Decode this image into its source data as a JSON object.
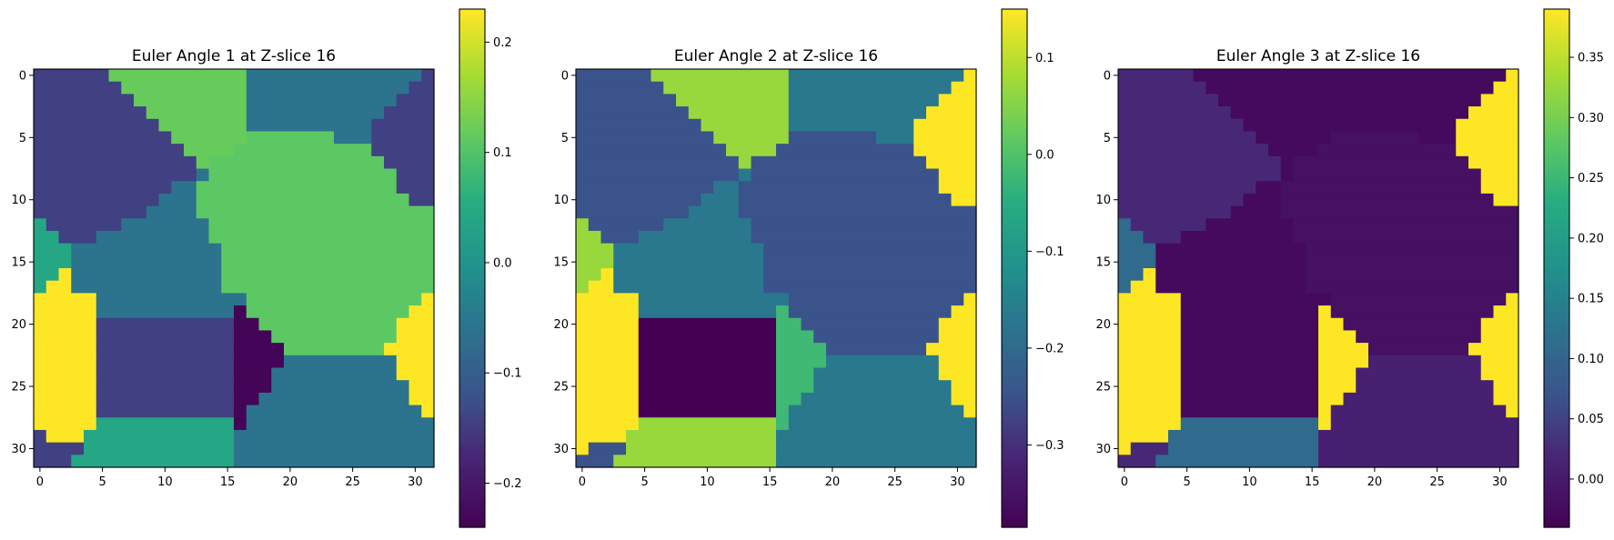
{
  "figure": "Euler angles at Z-slice 16",
  "chart_data": [
    {
      "type": "heatmap",
      "title": "Euler Angle 1 at Z-slice 16",
      "xlabel": "",
      "ylabel": "",
      "x_ticks": [
        0,
        5,
        10,
        15,
        20,
        25,
        30
      ],
      "y_ticks": [
        0,
        5,
        10,
        15,
        20,
        25,
        30
      ],
      "grid": false,
      "colormap": "viridis",
      "colorbar": {
        "range": [
          -0.24,
          0.23
        ],
        "ticks": [
          -0.2,
          -0.1,
          0.0,
          0.1,
          0.2
        ],
        "tick_labels": [
          "−0.2",
          "−0.1",
          "0.0",
          "0.1",
          "0.2"
        ]
      },
      "grains": {
        "A": 0.23,
        "B": -0.145,
        "C": 0.12,
        "D": -0.06,
        "E": 0.11,
        "F": -0.145,
        "G": -0.235,
        "H": -0.145,
        "I": -0.06,
        "J": 0.04
      }
    },
    {
      "type": "heatmap",
      "title": "Euler Angle 2 at Z-slice 16",
      "xlabel": "",
      "ylabel": "",
      "x_ticks": [
        0,
        5,
        10,
        15,
        20,
        25,
        30
      ],
      "y_ticks": [
        0,
        5,
        10,
        15,
        20,
        25,
        30
      ],
      "grid": false,
      "colormap": "viridis",
      "colorbar": {
        "range": [
          -0.385,
          0.15
        ],
        "ticks": [
          -0.3,
          -0.2,
          -0.1,
          0.0,
          0.1
        ],
        "tick_labels": [
          "−0.3",
          "−0.2",
          "−0.1",
          "0.0",
          "0.1"
        ]
      },
      "grains": {
        "A": 0.15,
        "B": -0.25,
        "C": 0.07,
        "D": -0.17,
        "E": -0.25,
        "F": 0.15,
        "G": -0.02,
        "H": -0.385,
        "I": -0.17,
        "J": 0.07
      }
    },
    {
      "type": "heatmap",
      "title": "Euler Angle 3 at Z-slice 16",
      "xlabel": "",
      "ylabel": "",
      "x_ticks": [
        0,
        5,
        10,
        15,
        20,
        25,
        30
      ],
      "y_ticks": [
        0,
        5,
        10,
        15,
        20,
        25,
        30
      ],
      "grid": false,
      "colormap": "viridis",
      "colorbar": {
        "range": [
          -0.04,
          0.39
        ],
        "ticks": [
          0.0,
          0.05,
          0.1,
          0.15,
          0.2,
          0.25,
          0.3,
          0.35
        ],
        "tick_labels": [
          "0.00",
          "0.05",
          "0.10",
          "0.15",
          "0.20",
          "0.25",
          "0.30",
          "0.35"
        ]
      },
      "grains": {
        "A": 0.39,
        "B": 0.02,
        "C": -0.025,
        "D": -0.025,
        "E": -0.015,
        "F": 0.39,
        "G": 0.39,
        "H": -0.025,
        "I": 0.01,
        "J": 0.11
      }
    }
  ],
  "grain_map_rows": [
    "BBBBBBCCCCCCCCCCCDDDDDDDDDDDDDDF",
    "BBBBBBBCCCCCCCCCCDDDDDDDDDDDDDFF",
    "BBBBBBBBCCCCCCCCCDDDDDDDDDDDDFFF",
    "BBBBBBBBBCCCCCCCCDDDDDDDDDDDFFFF",
    "BBBBBBBBBBCCCCCCCDDDDDDDDDDFFFFF",
    "BBBBBBBBBBBCCCCCCEEEEEEEDDDFFFFF",
    "BBBBBBBBBBBBCCCCEEEEEEEEEEEFFFFF",
    "BBBBBBBBBBBBBCEEEEEEEEEEEEEEFFFF",
    "BBBBBBBBBBBBBDEEEEEEEEEEEEEEEFFF",
    "BBBBBBBBBBBDDEEEEEEEEEEEEEEEEFFF",
    "BBBBBBBBBBDDDEEEEEEEEEEEEEEEEEFF",
    "BBBBBBBBBDDDDEEEEEEEEEEEEEEEEEEE",
    "JBBBBBBDDDDDDDEEEEEEEEEEEEEEEEEE",
    "JJBBBDDDDDDDDDEEEEEEEEEEEEEEEEEE",
    "JJJDDDDDDDDDDDDEEEEEEEEEEEEEEEEE",
    "JJJDDDDDDDDDDDDEEEEEEEEEEEEEEEEE",
    "JJADDDDDDDDDDDDEEEEEEEEEEEEEEEEE",
    "JAADDDDDDDDDDDDEEEEEEEEEEEEEEEEE",
    "AAAAADDDDDDDDDDDDEEEEEEEEEEEEEEA",
    "AAAAADDDDDDDDDDDGEEEEEEEEEEEEEAA",
    "AAAAAHHHHHHHHHHHGGEEEEEEEEEEEAAA",
    "AAAAAHHHHHHHHHHHGGGEEEEEEEEEEAAA",
    "AAAAAHHHHHHHHHHHGGGGEEEEEEEEAAAA",
    "AAAAAHHHHHHHHHHHGGGGIIIIIIIIIAAA",
    "AAAAAHHHHHHHHHHHGGGIIIIIIIIIIAAA",
    "AAAAAHHHHHHHHHHHGGGIIIIIIIIIIIAA",
    "AAAAAHHHHHHHHHHHGGIIIIIIIIIIIIAA",
    "AAAAAHHHHHHHHHHHGIIIIIIIIIIIIIIA",
    "AAAAAJJJJJJJJJJJGIIIIIIIIIIIIIII",
    "FAAAJJJJJJJJJJJJIIIIIIIIIIIIIIII",
    "FBBBJJJJJJJJJJJJIIIIIIIIIIIIIIII",
    "BBBJJJJJJJJJJJJJIIIIIIIIIIIIIIII"
  ]
}
